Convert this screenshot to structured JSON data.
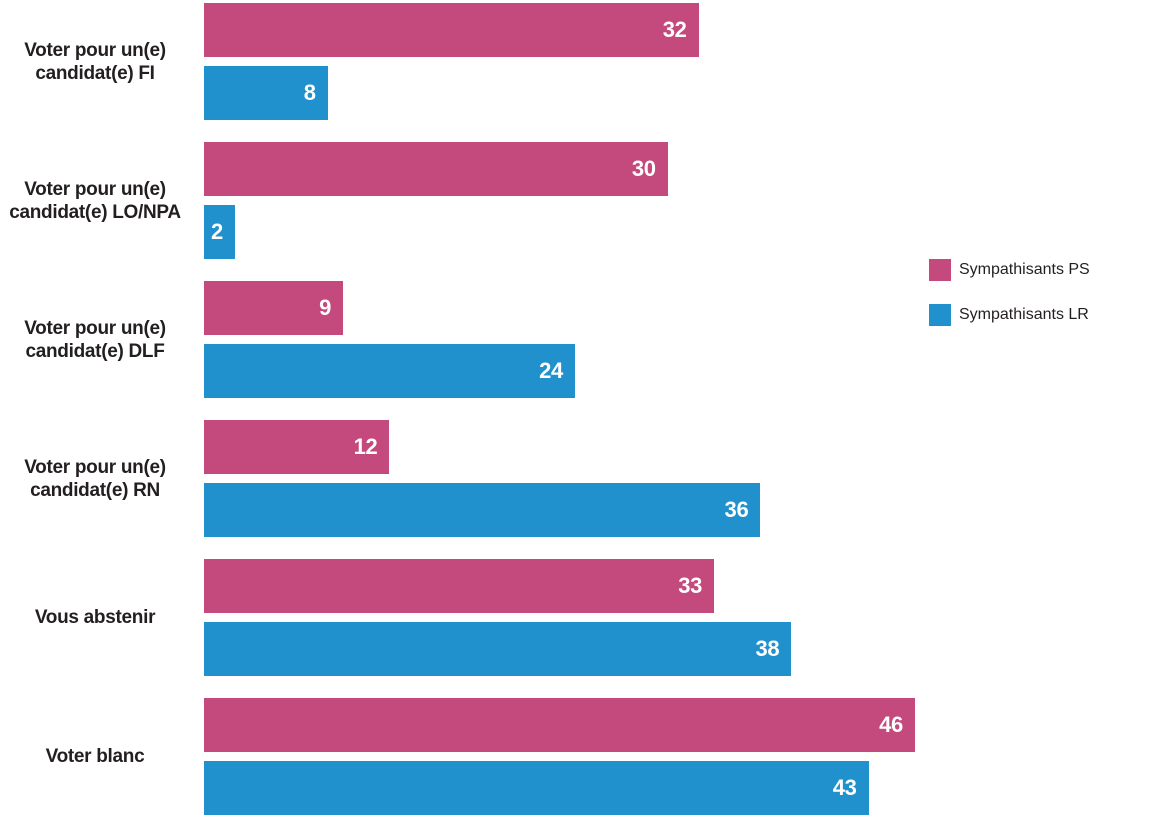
{
  "background_color": "#ffffff",
  "colors": {
    "series_ps": "#c4497c",
    "series_lr": "#2191ce",
    "category_text": "#231f20",
    "value_text": "#ffffff"
  },
  "legend": {
    "items": [
      {
        "label": "Sympathisants PS",
        "color": "#c4497c"
      },
      {
        "label": "Sympathisants LR",
        "color": "#2191ce"
      }
    ]
  },
  "chart_data": {
    "type": "bar",
    "orientation": "horizontal",
    "title": "",
    "xlabel": "",
    "ylabel": "",
    "xlim": [
      0,
      46
    ],
    "grid": false,
    "legend_position": "right",
    "value_labels": "inside-end-white-bold",
    "categories": [
      "Voter pour un(e)\ncandidat(e) FI",
      "Voter pour un(e)\ncandidat(e) LO/NPA",
      "Voter pour un(e)\ncandidat(e) DLF",
      "Voter pour un(e)\ncandidat(e) RN",
      "Vous abstenir",
      "Voter blanc"
    ],
    "series": [
      {
        "name": "Sympathisants PS",
        "color": "#c4497c",
        "values": [
          32,
          30,
          9,
          12,
          33,
          46
        ]
      },
      {
        "name": "Sympathisants LR",
        "color": "#2191ce",
        "values": [
          8,
          2,
          24,
          36,
          38,
          43
        ]
      }
    ]
  }
}
